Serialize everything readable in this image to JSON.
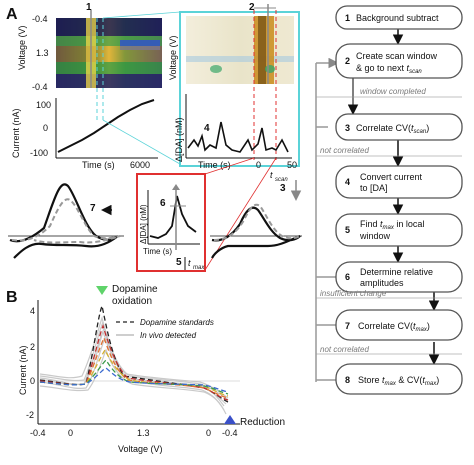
{
  "panel_a": {
    "label": "A",
    "top_left": {
      "step_number": "1",
      "y_label": "Voltage (V)",
      "y_ticks": [
        "-0.4",
        "1.3",
        "-0.4"
      ],
      "x_label": "Time (s)",
      "x_tick_end": "6000",
      "current_label": "Current (nA)",
      "current_ticks": [
        "100",
        "0",
        "-100"
      ]
    },
    "top_mid": {
      "step_number": "2",
      "y_label": "Voltage (V)",
      "da_label": "Δ[DA] (nM)",
      "step4": "4",
      "x_label": "Time (s)",
      "x_ticks": [
        "0",
        "50"
      ],
      "t_scan": "t",
      "t_scan_sub": "scan"
    },
    "inset": {
      "step_number": "6",
      "y_label": "Δ[DA] (nM)",
      "x_label": "Time (s)",
      "t_max": "t",
      "t_max_sub": "max",
      "step5": "5"
    },
    "step7": "7",
    "step3": "3"
  },
  "panel_b": {
    "label": "B",
    "oxidation_label": "Dopamine\noxidation",
    "reduction_label": "Reduction",
    "legend_standards": "Dopamine standards",
    "legend_invivo": "In vivo detected",
    "y_label": "Current (nA)",
    "x_label": "Voltage (V)",
    "y_ticks": [
      "4",
      "2",
      "0",
      "-2"
    ],
    "x_ticks": [
      "-0.4",
      "0",
      "1.3",
      "0",
      "-0.4"
    ]
  },
  "flowchart": {
    "steps": [
      {
        "num": "1",
        "text": "Background subtract"
      },
      {
        "num": "2",
        "text": "Create scan window & go to next t_scan"
      },
      {
        "num": "3",
        "text": "Correlate CV(t_scan)"
      },
      {
        "num": "4",
        "text": "Convert current to [DA]"
      },
      {
        "num": "5",
        "text": "Find t_max in local window"
      },
      {
        "num": "6",
        "text": "Determine relative amplitudes"
      },
      {
        "num": "7",
        "text": "Correlate CV(t_max)"
      },
      {
        "num": "8",
        "text": "Store t_max & CV(t_max)"
      }
    ],
    "branches": {
      "window_completed": "window completed",
      "not_correlated_1": "not correlated",
      "insufficient_change": "insufficient change",
      "not_correlated_2": "not correlated"
    }
  }
}
